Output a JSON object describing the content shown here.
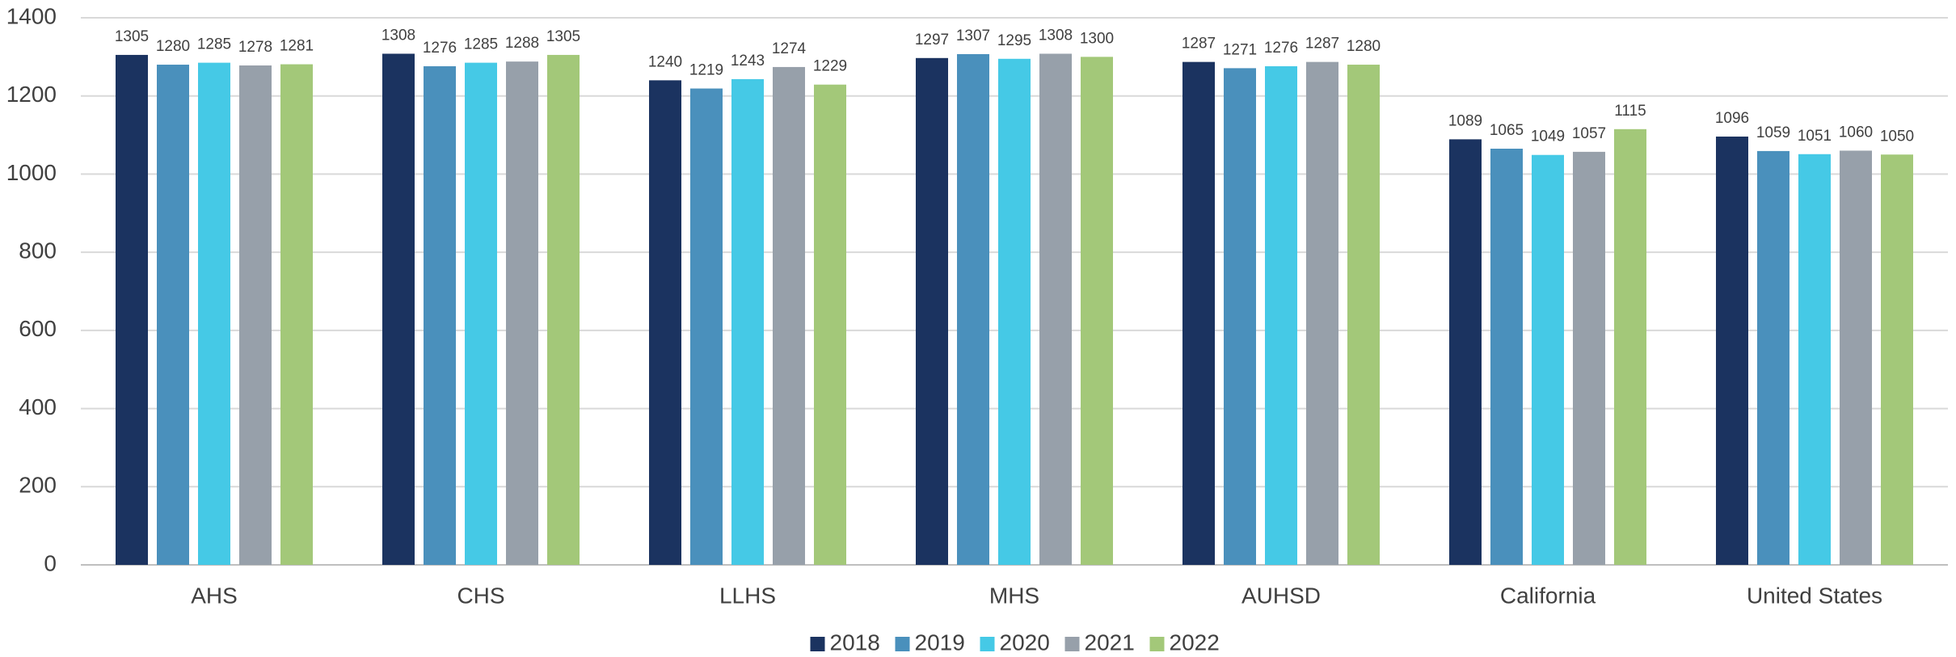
{
  "chart_data": {
    "type": "bar",
    "categories": [
      "AHS",
      "CHS",
      "LLHS",
      "MHS",
      "AUHSD",
      "California",
      "United States"
    ],
    "series": [
      {
        "name": "2018",
        "color": "#1b3360",
        "values": [
          1305,
          1308,
          1240,
          1297,
          1287,
          1089,
          1096
        ]
      },
      {
        "name": "2019",
        "color": "#4a90bc",
        "values": [
          1280,
          1276,
          1219,
          1307,
          1271,
          1065,
          1059
        ]
      },
      {
        "name": "2020",
        "color": "#45c9e6",
        "values": [
          1285,
          1285,
          1243,
          1295,
          1276,
          1049,
          1051
        ]
      },
      {
        "name": "2021",
        "color": "#97a0aa",
        "values": [
          1278,
          1288,
          1274,
          1308,
          1287,
          1057,
          1060
        ]
      },
      {
        "name": "2022",
        "color": "#a3c879",
        "values": [
          1281,
          1305,
          1229,
          1300,
          1280,
          1115,
          1050
        ]
      }
    ],
    "ylim": [
      0,
      1400
    ],
    "yticks": [
      0,
      200,
      400,
      600,
      800,
      1000,
      1200,
      1400
    ],
    "grid": true,
    "legend": "bottom",
    "data_labels": true
  }
}
